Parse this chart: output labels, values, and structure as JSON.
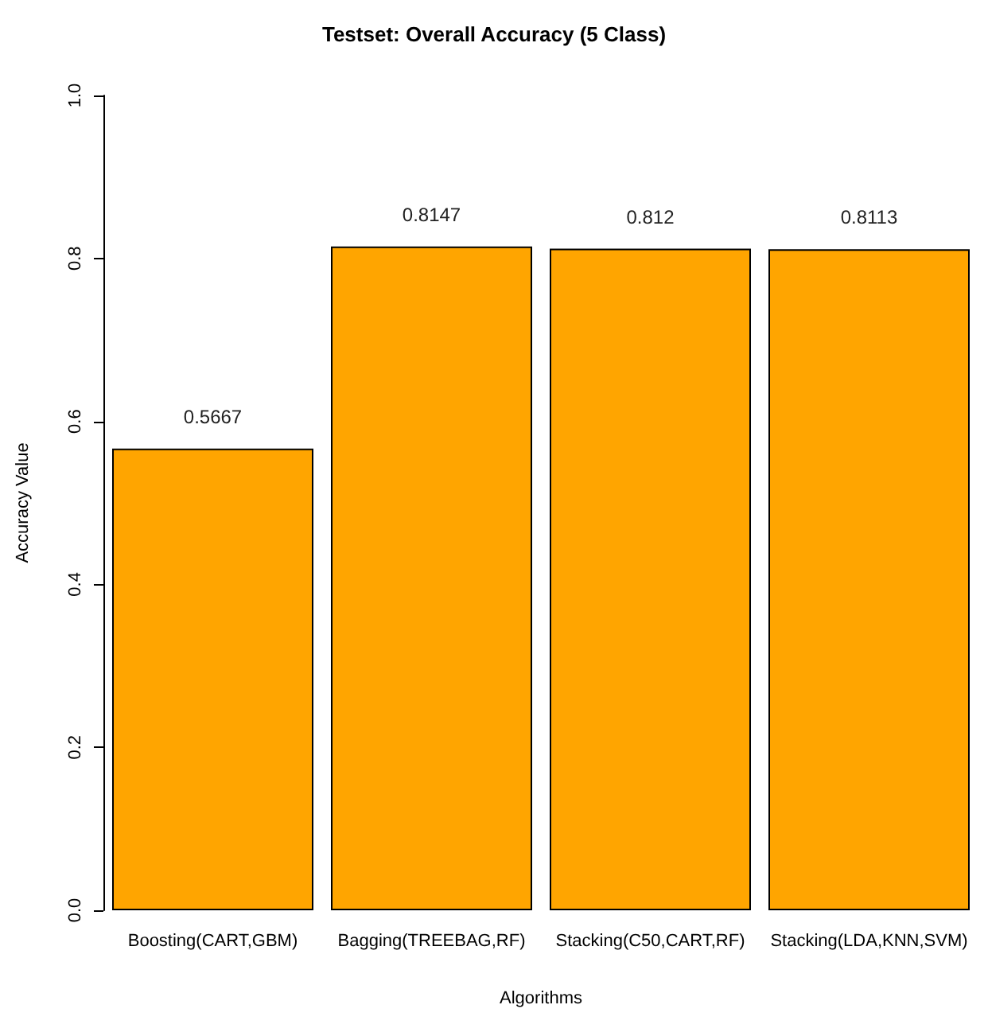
{
  "chart_data": {
    "type": "bar",
    "title": "Testset: Overall Accuracy (5 Class)",
    "xlabel": "Algorithms",
    "ylabel": "Accuracy Value",
    "categories": [
      "Boosting(CART,GBM)",
      "Bagging(TREEBAG,RF)",
      "Stacking(C50,CART,RF)",
      "Stacking(LDA,KNN,SVM)"
    ],
    "values": [
      0.5667,
      0.8147,
      0.812,
      0.8113
    ],
    "color": "#ffa500",
    "data_labels": true,
    "grid": false,
    "ylim": [
      0,
      1
    ],
    "yticks": [
      {
        "value": 0,
        "label": "0.0"
      },
      0.2,
      0.4,
      0.6,
      0.8,
      {
        "value": 1,
        "label": "1.0"
      }
    ]
  }
}
